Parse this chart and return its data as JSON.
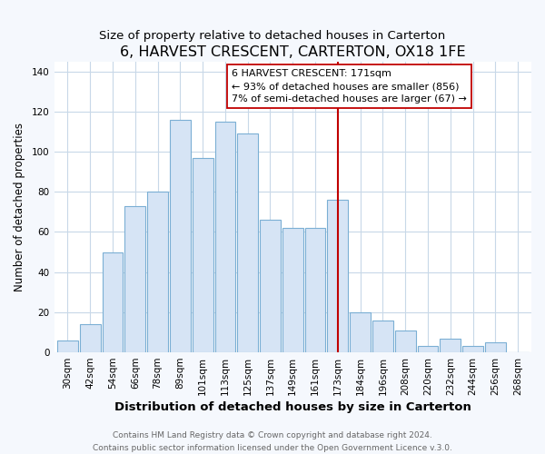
{
  "title": "6, HARVEST CRESCENT, CARTERTON, OX18 1FE",
  "subtitle": "Size of property relative to detached houses in Carterton",
  "xlabel": "Distribution of detached houses by size in Carterton",
  "ylabel": "Number of detached properties",
  "footer_line1": "Contains HM Land Registry data © Crown copyright and database right 2024.",
  "footer_line2": "Contains public sector information licensed under the Open Government Licence v.3.0.",
  "bar_labels": [
    "30sqm",
    "42sqm",
    "54sqm",
    "66sqm",
    "78sqm",
    "89sqm",
    "101sqm",
    "113sqm",
    "125sqm",
    "137sqm",
    "149sqm",
    "161sqm",
    "173sqm",
    "184sqm",
    "196sqm",
    "208sqm",
    "220sqm",
    "232sqm",
    "244sqm",
    "256sqm",
    "268sqm"
  ],
  "bar_values": [
    6,
    14,
    50,
    73,
    80,
    116,
    97,
    115,
    109,
    66,
    62,
    62,
    76,
    20,
    16,
    11,
    3,
    7,
    3,
    5,
    0
  ],
  "bar_color": "#d6e4f5",
  "bar_edge_color": "#7bafd4",
  "vline_x_idx": 12,
  "vline_color": "#c00000",
  "annotation_title": "6 HARVEST CRESCENT: 171sqm",
  "annotation_line1": "← 93% of detached houses are smaller (856)",
  "annotation_line2": "7% of semi-detached houses are larger (67) →",
  "annotation_box_facecolor": "#ffffff",
  "annotation_box_edgecolor": "#c00000",
  "ylim": [
    0,
    145
  ],
  "yticks": [
    0,
    20,
    40,
    60,
    80,
    100,
    120,
    140
  ],
  "plot_bg_color": "#ffffff",
  "fig_bg_color": "#f5f8fd",
  "grid_color": "#c8d8e8",
  "title_fontsize": 11.5,
  "subtitle_fontsize": 9.5,
  "xlabel_fontsize": 9.5,
  "ylabel_fontsize": 8.5,
  "tick_fontsize": 7.5,
  "annotation_fontsize": 8,
  "footer_fontsize": 6.5
}
